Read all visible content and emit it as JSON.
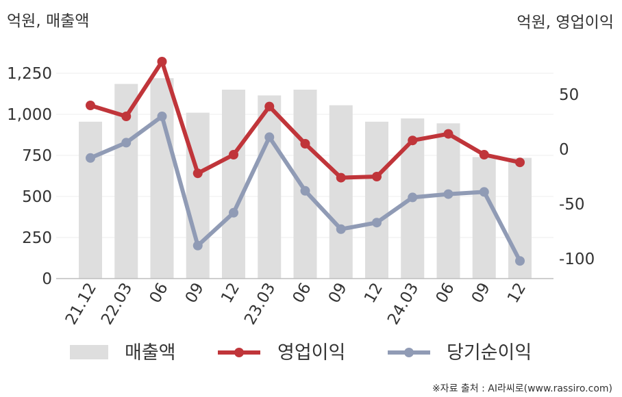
{
  "left_unit_label": "억원, 매출액",
  "right_unit_label": "억원, 영업이익",
  "source_note": "※자료 출처 : AI라씨로(www.rassiro.com)",
  "colors": {
    "revenue": "#dedede",
    "operating_profit": "#c0353a",
    "net_income": "#909bb5",
    "grid": "#eeeeee",
    "axis": "#bdbdbd"
  },
  "chart_data": {
    "type": "bar+line",
    "categories": [
      "21.12",
      "22.03",
      "06",
      "09",
      "12",
      "23.03",
      "06",
      "09",
      "12",
      "24.03",
      "06",
      "09",
      "12"
    ],
    "y_left": {
      "ticks": [
        "0",
        "250",
        "500",
        "750",
        "1,000",
        "1,250"
      ],
      "tick_values": [
        0,
        250,
        500,
        750,
        1000,
        1250
      ],
      "range": [
        0,
        1250
      ]
    },
    "y_right": {
      "ticks": [
        "-100",
        "-50",
        "0",
        "50"
      ],
      "tick_values": [
        -100,
        -50,
        0,
        50
      ],
      "range": [
        -118,
        83
      ]
    },
    "grid": true,
    "legend_position": "bottom",
    "series": [
      {
        "name": "매출액",
        "type": "bar",
        "axis": "left",
        "values": [
          955,
          1185,
          1220,
          1010,
          1150,
          1115,
          1150,
          1055,
          955,
          975,
          945,
          740,
          735
        ]
      },
      {
        "name": "영업이익",
        "type": "line",
        "axis": "right",
        "values": [
          40,
          30,
          80,
          -22,
          -5,
          39,
          5,
          -26,
          -25,
          8,
          14,
          -5,
          -12
        ]
      },
      {
        "name": "당기순이익",
        "type": "line",
        "axis": "right",
        "values": [
          -8,
          6,
          30,
          -88,
          -58,
          11,
          -38,
          -73,
          -67,
          -44,
          -41,
          -39,
          -102
        ]
      }
    ]
  }
}
